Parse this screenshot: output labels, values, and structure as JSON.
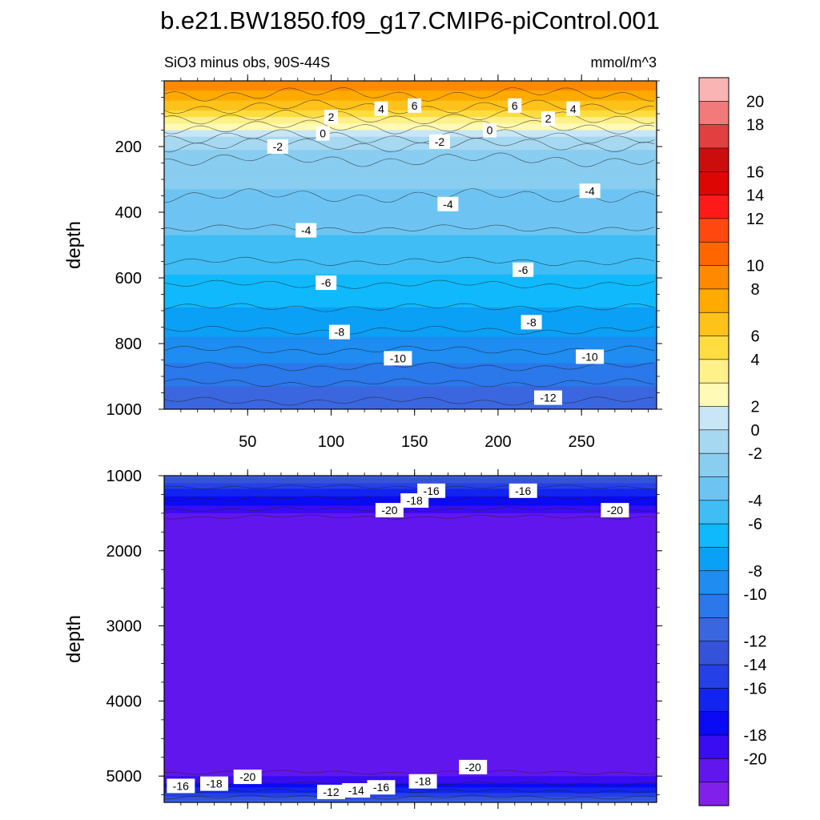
{
  "title": "b.e21.BW1850.f09_g17.CMIP6-piControl.001",
  "subtitle_left": "SiO3 minus obs, 90S-44S",
  "subtitle_right": "mmol/m^3",
  "chart_data": [
    {
      "type": "contour",
      "panel": "upper",
      "title": "b.e21.BW1850.f09_g17.CMIP6-piControl.001",
      "subtitle": "SiO3 minus obs, 90S-44S",
      "units": "mmol/m^3",
      "xlabel": "",
      "ylabel": "depth",
      "xlim": [
        0,
        295
      ],
      "ylim": [
        1000,
        0
      ],
      "xticks": [
        "50",
        "100",
        "150",
        "200",
        "250"
      ],
      "yticks": [
        "200",
        "400",
        "600",
        "800",
        "1000"
      ],
      "profile": [
        {
          "depth": 0,
          "value": 10
        },
        {
          "depth": 40,
          "value": 8
        },
        {
          "depth": 80,
          "value": 6
        },
        {
          "depth": 110,
          "value": 4
        },
        {
          "depth": 140,
          "value": 2
        },
        {
          "depth": 170,
          "value": 0
        },
        {
          "depth": 195,
          "value": -1
        },
        {
          "depth": 240,
          "value": -2
        },
        {
          "depth": 350,
          "value": -3
        },
        {
          "depth": 450,
          "value": -4
        },
        {
          "depth": 550,
          "value": -5
        },
        {
          "depth": 620,
          "value": -6
        },
        {
          "depth": 690,
          "value": -7
        },
        {
          "depth": 760,
          "value": -8
        },
        {
          "depth": 820,
          "value": -9
        },
        {
          "depth": 870,
          "value": -10
        },
        {
          "depth": 920,
          "value": -11
        },
        {
          "depth": 975,
          "value": -12
        },
        {
          "depth": 1000,
          "value": -12.5
        }
      ],
      "contour_labels": [
        {
          "text": "2",
          "x": 100,
          "depth": 110
        },
        {
          "text": "4",
          "x": 130,
          "depth": 85
        },
        {
          "text": "6",
          "x": 150,
          "depth": 75
        },
        {
          "text": "6",
          "x": 210,
          "depth": 75
        },
        {
          "text": "4",
          "x": 245,
          "depth": 85
        },
        {
          "text": "2",
          "x": 230,
          "depth": 115
        },
        {
          "text": "0",
          "x": 95,
          "depth": 160
        },
        {
          "text": "0",
          "x": 195,
          "depth": 150
        },
        {
          "text": "-2",
          "x": 68,
          "depth": 200
        },
        {
          "text": "-2",
          "x": 165,
          "depth": 185
        },
        {
          "text": "-4",
          "x": 255,
          "depth": 335
        },
        {
          "text": "-4",
          "x": 170,
          "depth": 375
        },
        {
          "text": "-4",
          "x": 85,
          "depth": 455
        },
        {
          "text": "-6",
          "x": 97,
          "depth": 615
        },
        {
          "text": "-6",
          "x": 215,
          "depth": 575
        },
        {
          "text": "-8",
          "x": 105,
          "depth": 765
        },
        {
          "text": "-8",
          "x": 220,
          "depth": 735
        },
        {
          "text": "-10",
          "x": 140,
          "depth": 845
        },
        {
          "text": "-10",
          "x": 255,
          "depth": 840
        },
        {
          "text": "-12",
          "x": 230,
          "depth": 965
        }
      ]
    },
    {
      "type": "contour",
      "panel": "lower",
      "xlabel": "",
      "ylabel": "depth",
      "xlim": [
        0,
        295
      ],
      "ylim": [
        5350,
        1000
      ],
      "yticks": [
        "1000",
        "2000",
        "3000",
        "4000",
        "5000"
      ],
      "profile": [
        {
          "depth": 1000,
          "value": -12
        },
        {
          "depth": 1150,
          "value": -15
        },
        {
          "depth": 1300,
          "value": -17
        },
        {
          "depth": 1450,
          "value": -19
        },
        {
          "depth": 1550,
          "value": -20.5
        },
        {
          "depth": 4950,
          "value": -20.5
        },
        {
          "depth": 5100,
          "value": -18
        },
        {
          "depth": 5200,
          "value": -16
        },
        {
          "depth": 5280,
          "value": -14
        },
        {
          "depth": 5350,
          "value": -12
        }
      ],
      "contour_labels": [
        {
          "text": "-16",
          "x": 160,
          "depth": 1200
        },
        {
          "text": "-16",
          "x": 215,
          "depth": 1200
        },
        {
          "text": "-18",
          "x": 150,
          "depth": 1330
        },
        {
          "text": "-20",
          "x": 135,
          "depth": 1460
        },
        {
          "text": "-20",
          "x": 270,
          "depth": 1460
        },
        {
          "text": "-20",
          "x": 185,
          "depth": 4880
        },
        {
          "text": "-20",
          "x": 50,
          "depth": 5010
        },
        {
          "text": "-18",
          "x": 30,
          "depth": 5100
        },
        {
          "text": "-16",
          "x": 10,
          "depth": 5130
        },
        {
          "text": "-18",
          "x": 155,
          "depth": 5070
        },
        {
          "text": "-16",
          "x": 130,
          "depth": 5150
        },
        {
          "text": "-14",
          "x": 115,
          "depth": 5190
        },
        {
          "text": "-12",
          "x": 100,
          "depth": 5210
        }
      ]
    }
  ],
  "colorbar": {
    "labels": [
      "20",
      "18",
      "16",
      "14",
      "12",
      "10",
      "8",
      "6",
      "4",
      "2",
      "0",
      "-2",
      "-4",
      "-6",
      "-8",
      "-10",
      "-12",
      "-14",
      "-16",
      "-18",
      "-20"
    ],
    "colors": [
      "#fbb4b4",
      "#f27a7a",
      "#e04040",
      "#cc0d0d",
      "#de0505",
      "#ff1a1a",
      "#ff4810",
      "#ff6600",
      "#ff8a00",
      "#ffaa00",
      "#ffc21a",
      "#ffdd40",
      "#fff08a",
      "#fffab5",
      "#c9e6f7",
      "#a6d8f1",
      "#89cdf0",
      "#6dc4f3",
      "#40bdf5",
      "#10b9fb",
      "#0aa0f5",
      "#1e8cf0",
      "#2a78ea",
      "#3a66e0",
      "#3553d9",
      "#2440e6",
      "#1224f0",
      "#0a0af5",
      "#3a0cf2",
      "#6216ee",
      "#8120ea"
    ]
  }
}
